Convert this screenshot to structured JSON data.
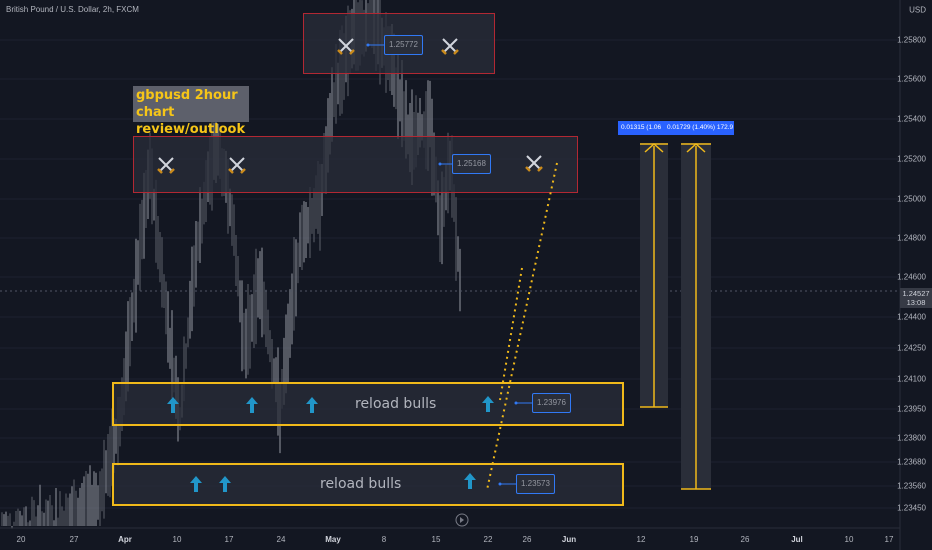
{
  "header": {
    "symbol_line": "British Pound / U.S. Dollar, 2h, FXCM"
  },
  "price_axis": {
    "currency": "USD",
    "labels": [
      "1.25800",
      "1.25600",
      "1.25400",
      "1.25200",
      "1.25000",
      "1.24800",
      "1.24600",
      "1.24400",
      "1.24250",
      "1.24100",
      "1.23950",
      "1.23800",
      "1.23680",
      "1.23560",
      "1.23450"
    ],
    "current_price": "1.24527",
    "countdown": "13:08"
  },
  "time_axis": {
    "labels": [
      "20",
      "27",
      "Apr",
      "10",
      "17",
      "24",
      "May",
      "8",
      "15",
      "22",
      "26",
      "Jun",
      "12",
      "19",
      "26",
      "Jul",
      "10",
      "17"
    ]
  },
  "annotation": {
    "title": "gbpusd 2hour chart review/outlook"
  },
  "zones": {
    "top_red_label": "1.25772",
    "mid_red_label": "1.25168",
    "upper_yellow_text": "reload bulls",
    "upper_yellow_label": "1.23976",
    "lower_yellow_text": "reload bulls",
    "lower_yellow_label": "1.23573"
  },
  "measures": {
    "first": "0.01315 (1.06",
    "second": "0.01729 (1.40%) 172.9"
  },
  "colors": {
    "background": "#131722",
    "red_zone": "#b22833",
    "yellow_zone": "#f0b91a",
    "badge_border": "#3179f5",
    "up_arrow": "#2196c9"
  },
  "icons": [
    "crossed-swords-icon",
    "up-arrow-icon",
    "replay-icon"
  ]
}
